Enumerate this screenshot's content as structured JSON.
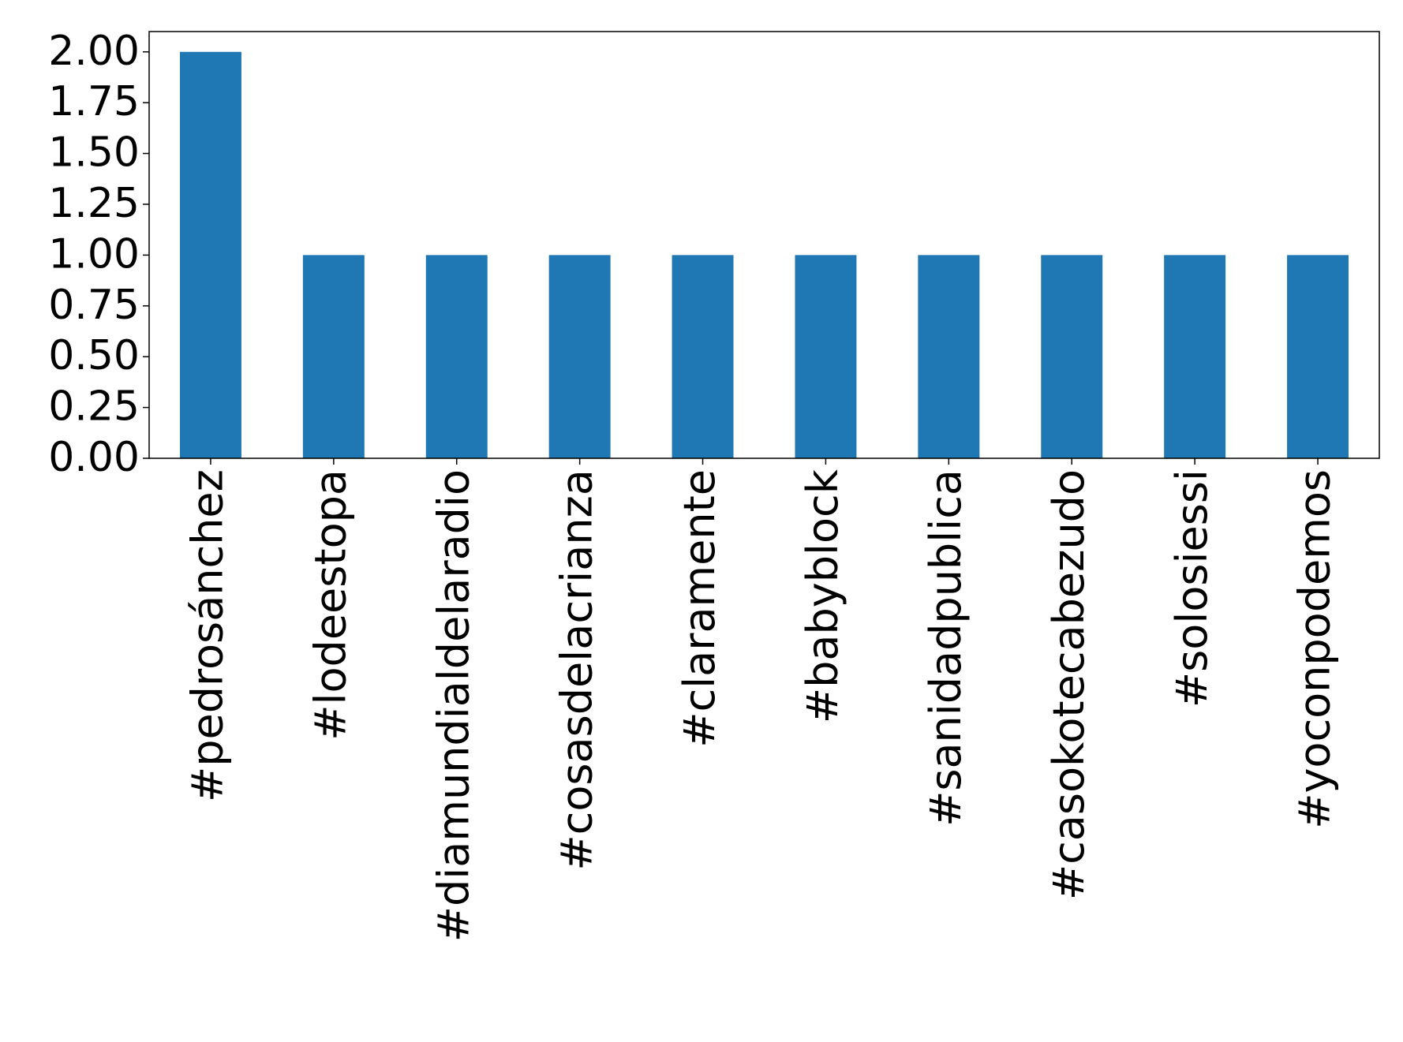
{
  "chart_data": {
    "type": "bar",
    "categories": [
      "#pedrosánchez",
      "#lodeestopa",
      "#diamundialdelaradio",
      "#cosasdelacrianza",
      "#claramente",
      "#babyblock",
      "#sanidadpublica",
      "#casokotecabezudo",
      "#solosiessi",
      "#yoconpodemos"
    ],
    "values": [
      2,
      1,
      1,
      1,
      1,
      1,
      1,
      1,
      1,
      1
    ],
    "color": "#1f77b4",
    "ylim": [
      0,
      2.1
    ],
    "yticks": [
      {
        "value": 0,
        "label": "0.00"
      },
      {
        "value": 0.25,
        "label": "0.25"
      },
      {
        "value": 0.5,
        "label": "0.50"
      },
      {
        "value": 0.75,
        "label": "0.75"
      },
      {
        "value": 1,
        "label": "1.00"
      },
      {
        "value": 1.25,
        "label": "1.25"
      },
      {
        "value": 1.5,
        "label": "1.50"
      },
      {
        "value": 1.75,
        "label": "1.75"
      },
      {
        "value": 2,
        "label": "2.00"
      }
    ],
    "grid": false
  }
}
